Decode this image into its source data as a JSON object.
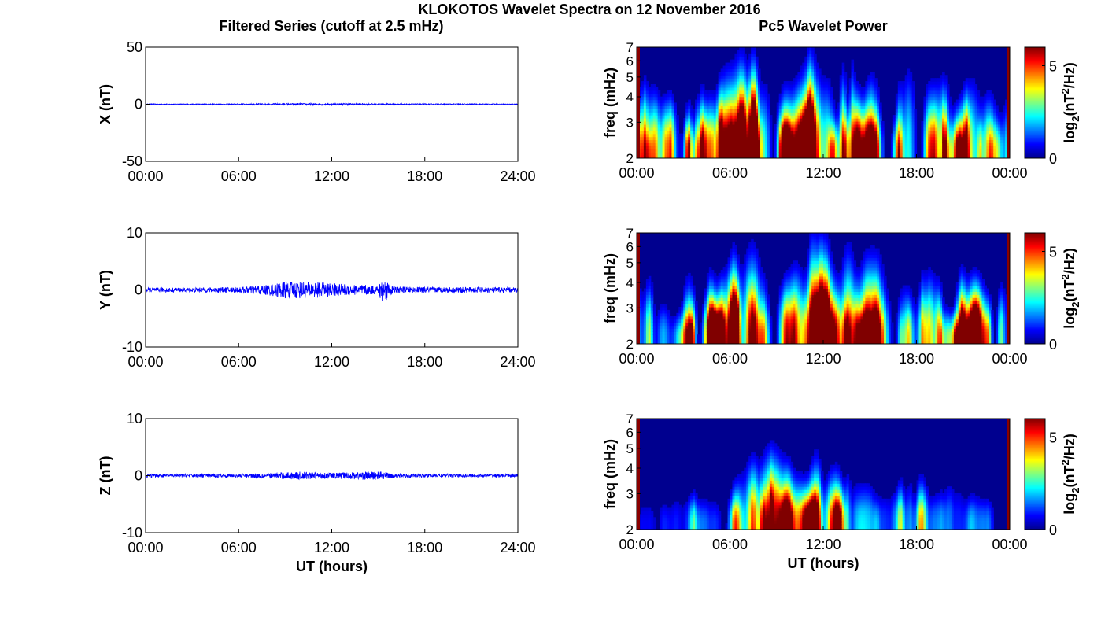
{
  "figure": {
    "title": "KLOKOTOS Wavelet Spectra on 12 November 2016",
    "left_column_title": "Filtered Series (cutoff at 2.5 mHz)",
    "right_column_title": "Pc5 Wavelet Power"
  },
  "chart_data": [
    {
      "type": "line",
      "ylabel": "X (nT)",
      "xlabel": "",
      "xlim": [
        0,
        24
      ],
      "ylim": [
        -50,
        50
      ],
      "x_tick_labels": [
        "00:00",
        "06:00",
        "12:00",
        "18:00",
        "24:00"
      ],
      "y_tick_labels": [
        "50",
        "0",
        "-50"
      ],
      "y_tick_values": [
        50,
        0,
        -50
      ],
      "series": [
        {
          "color": "#0000ff",
          "start_spike": 4,
          "envelope": [
            [
              0,
              0.4
            ],
            [
              3,
              0.4
            ],
            [
              6,
              0.5
            ],
            [
              9,
              0.8
            ],
            [
              12,
              0.9
            ],
            [
              15,
              0.7
            ],
            [
              18,
              0.5
            ],
            [
              21,
              0.5
            ],
            [
              24,
              0.4
            ]
          ]
        }
      ]
    },
    {
      "type": "heatmap",
      "ylabel": "freq (mHz)",
      "xlabel": "",
      "xlim": [
        0,
        24
      ],
      "ylim": [
        2,
        7
      ],
      "y_scale": "log",
      "x_tick_labels": [
        "00:00",
        "06:00",
        "12:00",
        "18:00",
        "00:00"
      ],
      "y_tick_labels": [
        "2",
        "3",
        "4",
        "5",
        "6",
        "7"
      ],
      "y_tick_values": [
        2,
        3,
        4,
        5,
        6,
        7
      ],
      "colorbar": {
        "label": "log2(nT2/Hz)",
        "ticks": [
          "0",
          "5"
        ],
        "range": [
          0,
          6
        ]
      },
      "activity": [
        [
          0,
          0.6
        ],
        [
          1,
          0.55
        ],
        [
          2,
          0.5
        ],
        [
          3,
          0.4
        ],
        [
          4,
          0.45
        ],
        [
          5,
          0.65
        ],
        [
          6,
          0.75
        ],
        [
          7,
          0.85
        ],
        [
          8,
          0.95
        ],
        [
          9,
          1.0
        ],
        [
          10,
          0.9
        ],
        [
          11,
          0.95
        ],
        [
          12,
          1.0
        ],
        [
          13,
          0.95
        ],
        [
          14,
          0.8
        ],
        [
          15,
          0.75
        ],
        [
          16,
          0.7
        ],
        [
          17,
          0.75
        ],
        [
          18,
          0.85
        ],
        [
          19,
          0.75
        ],
        [
          20,
          0.8
        ],
        [
          21,
          0.85
        ],
        [
          22,
          0.7
        ],
        [
          23,
          0.55
        ],
        [
          24,
          0.5
        ]
      ]
    },
    {
      "type": "line",
      "ylabel": "Y (nT)",
      "xlabel": "",
      "xlim": [
        0,
        24
      ],
      "ylim": [
        -10,
        10
      ],
      "x_tick_labels": [
        "00:00",
        "06:00",
        "12:00",
        "18:00",
        "24:00"
      ],
      "y_tick_labels": [
        "10",
        "0",
        "-10"
      ],
      "y_tick_values": [
        10,
        0,
        -10
      ],
      "series": [
        {
          "color": "#0000ff",
          "start_spike": 5,
          "envelope": [
            [
              0,
              0.4
            ],
            [
              3,
              0.4
            ],
            [
              6,
              0.5
            ],
            [
              8,
              1.0
            ],
            [
              9,
              1.6
            ],
            [
              10,
              1.5
            ],
            [
              11,
              1.4
            ],
            [
              12,
              1.2
            ],
            [
              13,
              1.0
            ],
            [
              15,
              0.8
            ],
            [
              15.2,
              2.5
            ],
            [
              16,
              0.6
            ],
            [
              18,
              0.5
            ],
            [
              21,
              0.5
            ],
            [
              24,
              0.45
            ]
          ]
        }
      ]
    },
    {
      "type": "heatmap",
      "ylabel": "freq (mHz)",
      "xlabel": "",
      "xlim": [
        0,
        24
      ],
      "ylim": [
        2,
        7
      ],
      "y_scale": "log",
      "x_tick_labels": [
        "00:00",
        "06:00",
        "12:00",
        "18:00",
        "00:00"
      ],
      "y_tick_labels": [
        "2",
        "3",
        "4",
        "5",
        "6",
        "7"
      ],
      "y_tick_values": [
        2,
        3,
        4,
        5,
        6,
        7
      ],
      "colorbar": {
        "label": "log2(nT2/Hz)",
        "ticks": [
          "0",
          "5"
        ],
        "range": [
          0,
          6
        ]
      },
      "activity": [
        [
          0,
          0.5
        ],
        [
          1,
          0.55
        ],
        [
          2,
          0.5
        ],
        [
          3,
          0.55
        ],
        [
          4,
          0.6
        ],
        [
          5,
          0.7
        ],
        [
          6,
          0.75
        ],
        [
          7,
          0.85
        ],
        [
          8,
          0.9
        ],
        [
          9,
          1.0
        ],
        [
          10,
          0.9
        ],
        [
          11,
          0.95
        ],
        [
          12,
          0.95
        ],
        [
          13,
          0.9
        ],
        [
          14,
          0.85
        ],
        [
          15,
          0.75
        ],
        [
          16,
          0.7
        ],
        [
          17,
          0.65
        ],
        [
          18,
          0.6
        ],
        [
          19,
          0.6
        ],
        [
          20,
          0.65
        ],
        [
          21,
          0.6
        ],
        [
          22,
          0.55
        ],
        [
          23,
          0.5
        ],
        [
          24,
          0.45
        ]
      ]
    },
    {
      "type": "line",
      "ylabel": "Z (nT)",
      "xlabel": "UT (hours)",
      "xlim": [
        0,
        24
      ],
      "ylim": [
        -10,
        10
      ],
      "x_tick_labels": [
        "00:00",
        "06:00",
        "12:00",
        "18:00",
        "24:00"
      ],
      "y_tick_labels": [
        "10",
        "0",
        "-10"
      ],
      "y_tick_values": [
        10,
        0,
        -10
      ],
      "series": [
        {
          "color": "#0000ff",
          "start_spike": 3,
          "envelope": [
            [
              0,
              0.3
            ],
            [
              3,
              0.3
            ],
            [
              6,
              0.3
            ],
            [
              9,
              0.6
            ],
            [
              10,
              0.7
            ],
            [
              12,
              0.5
            ],
            [
              13,
              0.6
            ],
            [
              15,
              0.8
            ],
            [
              16,
              0.4
            ],
            [
              18,
              0.3
            ],
            [
              24,
              0.3
            ]
          ]
        }
      ]
    },
    {
      "type": "heatmap",
      "ylabel": "freq (mHz)",
      "xlabel": "UT (hours)",
      "xlim": [
        0,
        24
      ],
      "ylim": [
        2,
        7
      ],
      "y_scale": "log",
      "x_tick_labels": [
        "00:00",
        "06:00",
        "12:00",
        "18:00",
        "00:00"
      ],
      "y_tick_labels": [
        "2",
        "3",
        "4",
        "5",
        "6",
        "7"
      ],
      "y_tick_values": [
        2,
        3,
        4,
        5,
        6,
        7
      ],
      "colorbar": {
        "label": "log2(nT2/Hz)",
        "ticks": [
          "0",
          "5"
        ],
        "range": [
          0,
          6
        ]
      },
      "activity": [
        [
          0,
          0.1
        ],
        [
          3,
          0.15
        ],
        [
          5,
          0.2
        ],
        [
          6,
          0.3
        ],
        [
          7,
          0.45
        ],
        [
          8,
          0.6
        ],
        [
          9,
          0.85
        ],
        [
          10,
          0.5
        ],
        [
          11,
          0.45
        ],
        [
          12,
          0.7
        ],
        [
          13,
          0.65
        ],
        [
          14,
          0.3
        ],
        [
          15,
          0.4
        ],
        [
          16,
          0.35
        ],
        [
          17,
          0.3
        ],
        [
          18,
          0.4
        ],
        [
          19,
          0.2
        ],
        [
          20,
          0.3
        ],
        [
          21,
          0.3
        ],
        [
          22,
          0.15
        ],
        [
          24,
          0.1
        ]
      ]
    }
  ]
}
